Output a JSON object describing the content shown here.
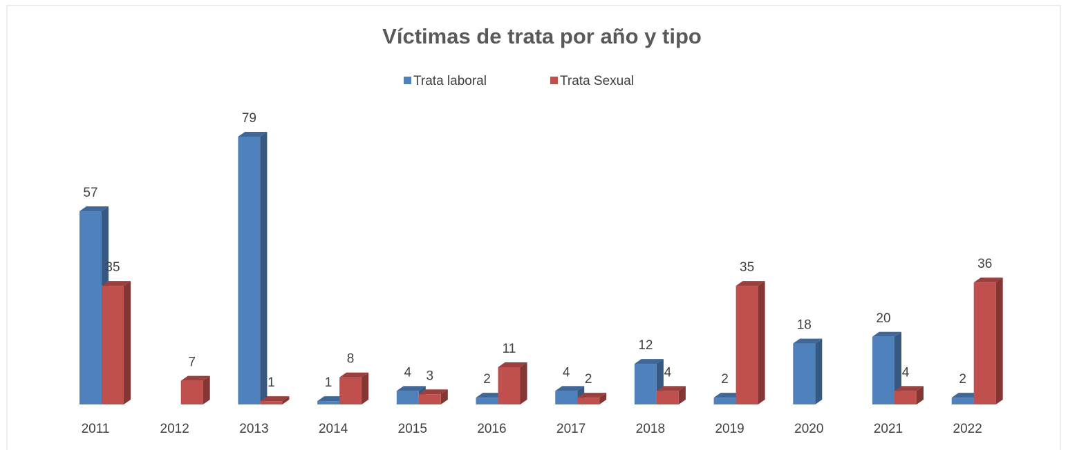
{
  "chart_data": {
    "type": "bar3d",
    "title": "Víctimas de trata por año y tipo",
    "categories": [
      "2011",
      "2012",
      "2013",
      "2014",
      "2015",
      "2016",
      "2017",
      "2018",
      "2019",
      "2020",
      "2021",
      "2022"
    ],
    "series": [
      {
        "name": "Trata laboral",
        "color": "#4f81bd",
        "values": [
          57,
          null,
          79,
          1,
          4,
          2,
          4,
          12,
          2,
          18,
          20,
          2
        ]
      },
      {
        "name": "Trata Sexual",
        "color": "#c0504d",
        "values": [
          35,
          7,
          1,
          8,
          3,
          11,
          2,
          4,
          35,
          null,
          4,
          36
        ]
      }
    ],
    "legend": "top"
  }
}
